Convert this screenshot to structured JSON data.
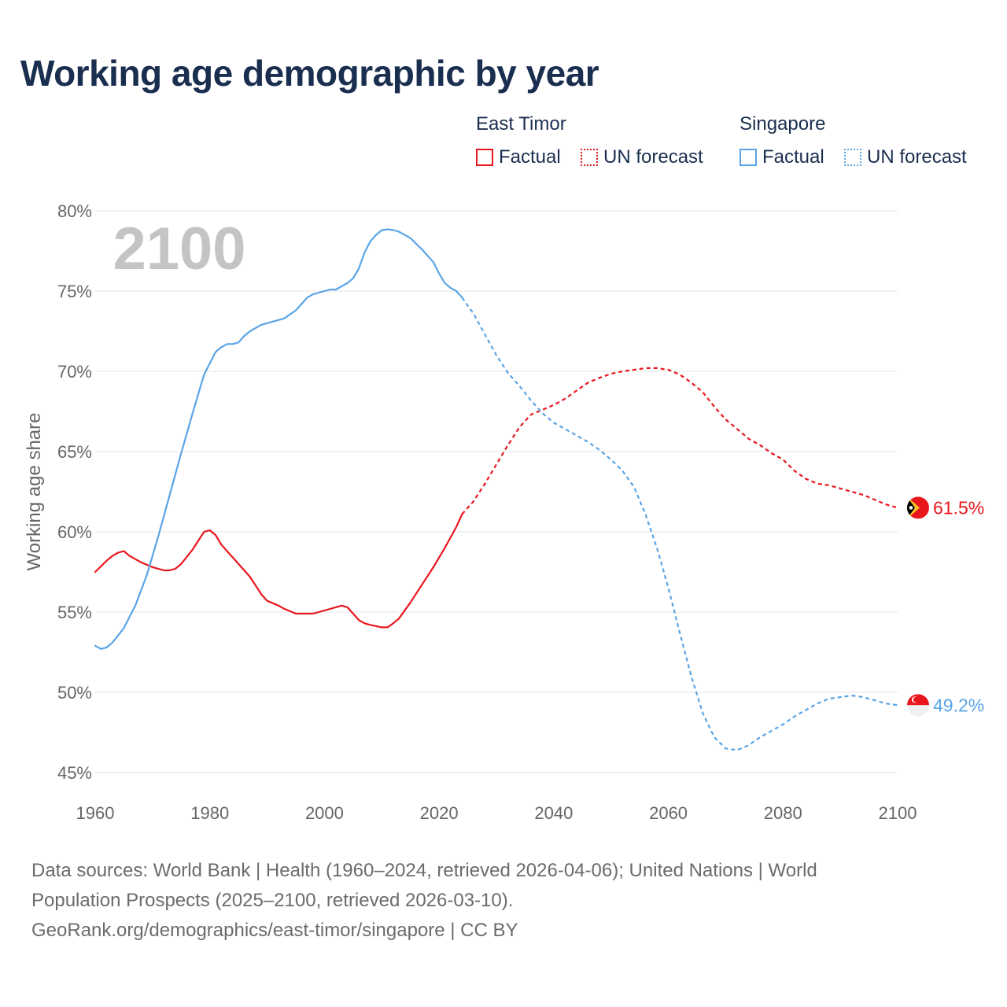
{
  "title": "Working age demographic by year",
  "legend": {
    "groups": [
      {
        "name": "East Timor",
        "color": "#e8171e",
        "items": [
          {
            "label": "Factual",
            "style": "solid"
          },
          {
            "label": "UN forecast",
            "style": "dotted"
          }
        ]
      },
      {
        "name": "Singapore",
        "color": "#5aa4e6",
        "items": [
          {
            "label": "Factual",
            "style": "solid"
          },
          {
            "label": "UN forecast",
            "style": "dotted"
          }
        ]
      }
    ]
  },
  "chart_data": {
    "type": "line",
    "year_label": "2100",
    "ylabel": "Working age share",
    "ylim": [
      45,
      80
    ],
    "xlim": [
      1960,
      2100
    ],
    "yticks": [
      "45%",
      "50%",
      "55%",
      "60%",
      "65%",
      "70%",
      "75%",
      "80%"
    ],
    "xticks": [
      "1960",
      "1980",
      "2000",
      "2020",
      "2040",
      "2060",
      "2080",
      "2100"
    ],
    "gridlines": true,
    "series": [
      {
        "name": "East Timor",
        "color": "#e8171e",
        "end_label": "61.5%",
        "flag": "east-timor",
        "factual": {
          "x": [
            1960,
            1962,
            1963,
            1964,
            1965,
            1966,
            1967,
            1968,
            1970,
            1972,
            1973,
            1974,
            1975,
            1977,
            1979,
            1980,
            1981,
            1982,
            1984,
            1987,
            1989,
            1990,
            1992,
            1993,
            1995,
            1998,
            2000,
            2003,
            2004,
            2005,
            2006,
            2007,
            2008,
            2010,
            2011,
            2012,
            2013,
            2015,
            2017,
            2019,
            2021,
            2023,
            2024
          ],
          "y": [
            57.5,
            58.2,
            58.5,
            58.7,
            58.8,
            58.5,
            58.3,
            58.1,
            57.8,
            57.6,
            57.6,
            57.7,
            58.0,
            58.9,
            60.0,
            60.1,
            59.8,
            59.2,
            58.4,
            57.2,
            56.1,
            55.7,
            55.4,
            55.2,
            54.9,
            54.9,
            55.1,
            55.4,
            55.3,
            54.9,
            54.5,
            54.3,
            54.2,
            54.05,
            54.05,
            54.3,
            54.6,
            55.6,
            56.7,
            57.8,
            59.0,
            60.3,
            61.1
          ]
        },
        "forecast": {
          "x": [
            2024,
            2026,
            2028,
            2030,
            2032,
            2034,
            2036,
            2038,
            2040,
            2042,
            2044,
            2046,
            2048,
            2050,
            2052,
            2054,
            2056,
            2058,
            2060,
            2062,
            2064,
            2066,
            2068,
            2070,
            2072,
            2074,
            2076,
            2078,
            2080,
            2082,
            2084,
            2086,
            2088,
            2090,
            2092,
            2094,
            2096,
            2098,
            2100
          ],
          "y": [
            61.1,
            61.9,
            63.0,
            64.2,
            65.4,
            66.5,
            67.3,
            67.6,
            67.9,
            68.3,
            68.8,
            69.3,
            69.6,
            69.85,
            70.0,
            70.1,
            70.2,
            70.2,
            70.1,
            69.8,
            69.3,
            68.7,
            67.8,
            67.0,
            66.4,
            65.8,
            65.4,
            64.9,
            64.5,
            63.8,
            63.3,
            63.0,
            62.9,
            62.7,
            62.5,
            62.3,
            62.0,
            61.7,
            61.5
          ]
        }
      },
      {
        "name": "Singapore",
        "color": "#5aa4e6",
        "end_label": "49.2%",
        "flag": "singapore",
        "factual": {
          "x": [
            1960,
            1961,
            1962,
            1963,
            1965,
            1967,
            1969,
            1971,
            1973,
            1975,
            1977,
            1979,
            1981,
            1982,
            1983,
            1984,
            1985,
            1986,
            1987,
            1989,
            1990,
            1993,
            1995,
            1997,
            1998,
            2000,
            2001,
            2002,
            2004,
            2005,
            2006,
            2007,
            2008,
            2009,
            2010,
            2011,
            2012,
            2013,
            2015,
            2017,
            2019,
            2020,
            2021,
            2022,
            2023,
            2024
          ],
          "y": [
            52.9,
            52.7,
            52.8,
            53.1,
            54.0,
            55.4,
            57.3,
            59.7,
            62.3,
            64.9,
            67.4,
            69.8,
            71.2,
            71.5,
            71.7,
            71.7,
            71.8,
            72.2,
            72.5,
            72.9,
            73.0,
            73.3,
            73.8,
            74.6,
            74.8,
            75.0,
            75.1,
            75.1,
            75.5,
            75.8,
            76.4,
            77.4,
            78.1,
            78.5,
            78.8,
            78.85,
            78.8,
            78.7,
            78.3,
            77.6,
            76.8,
            76.1,
            75.5,
            75.2,
            75.0,
            74.6
          ]
        },
        "forecast": {
          "x": [
            2024,
            2026,
            2028,
            2030,
            2032,
            2034,
            2036,
            2038,
            2040,
            2042,
            2044,
            2046,
            2048,
            2050,
            2052,
            2054,
            2056,
            2058,
            2060,
            2062,
            2064,
            2066,
            2068,
            2070,
            2072,
            2074,
            2076,
            2078,
            2080,
            2082,
            2084,
            2086,
            2088,
            2090,
            2092,
            2094,
            2096,
            2098,
            2100
          ],
          "y": [
            74.6,
            73.6,
            72.3,
            71.0,
            69.9,
            69.1,
            68.2,
            67.4,
            66.8,
            66.4,
            66.0,
            65.6,
            65.1,
            64.5,
            63.8,
            62.8,
            61.1,
            59.0,
            56.5,
            53.7,
            51.0,
            48.7,
            47.2,
            46.5,
            46.4,
            46.7,
            47.2,
            47.6,
            48.0,
            48.5,
            48.9,
            49.3,
            49.6,
            49.7,
            49.8,
            49.7,
            49.5,
            49.3,
            49.2
          ]
        }
      }
    ]
  },
  "footer": {
    "line1": "Data sources: World Bank | Health (1960–2024, retrieved 2026-04-06); United Nations | World",
    "line2": "Population Prospects (2025–2100, retrieved 2026-03-10).",
    "line3": "GeoRank.org/demographics/east-timor/singapore | CC BY"
  }
}
